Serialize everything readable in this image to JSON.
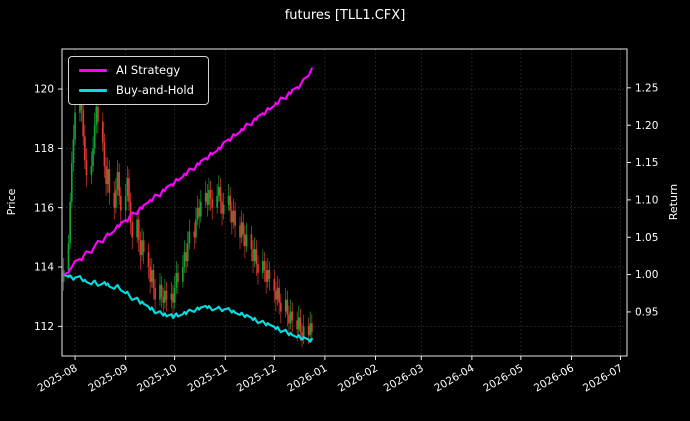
{
  "chart_data": {
    "type": "candlestick",
    "title": "futures [TLL1.CFX]",
    "ylabel_left": "Price",
    "ylabel_right": "Return",
    "grid": true,
    "legend_position": "upper-left",
    "background": "#000000",
    "x_tick_labels": [
      "2025-08",
      "2025-09",
      "2025-10",
      "2025-11",
      "2025-12",
      "2026-01",
      "2026-02",
      "2026-03",
      "2026-04",
      "2026-05",
      "2026-06",
      "2026-07"
    ],
    "x_tick_days": [
      8,
      39,
      69,
      100,
      130,
      161,
      192,
      220,
      251,
      281,
      312,
      342
    ],
    "x_axis_range_days": [
      0,
      346
    ],
    "y_ticks_left": [
      112,
      114,
      116,
      118,
      120
    ],
    "y_ticks_right": [
      0.95,
      1.0,
      1.05,
      1.1,
      1.15,
      1.2,
      1.25
    ],
    "y_ticks_right_labels": [
      "0.95",
      "1.00",
      "1.05",
      "1.10",
      "1.15",
      "1.20",
      "1.25"
    ],
    "price_axis_range": [
      111.0,
      121.35
    ],
    "return_axis_range": [
      0.891,
      1.302
    ],
    "colors": {
      "up": "#12a534",
      "down": "#e23a2e",
      "grid": "#3a3a3a",
      "frame": "#ffffff",
      "ai_strategy": "#ff00ff",
      "buy_and_hold": "#00e0e0"
    },
    "candle_days": [
      1,
      4,
      5,
      6,
      7,
      8,
      11,
      12,
      13,
      14,
      15,
      18,
      19,
      20,
      21,
      22,
      25,
      26,
      27,
      28,
      29,
      32,
      33,
      34,
      35,
      36,
      39,
      40,
      41,
      42,
      43,
      46,
      47,
      48,
      49,
      50,
      53,
      54,
      55,
      56,
      57,
      60,
      61,
      62,
      63,
      64,
      67,
      68,
      69,
      70,
      71,
      74,
      75,
      76,
      77,
      78,
      81,
      82,
      83,
      84,
      85,
      88,
      89,
      90,
      91,
      92,
      95,
      96,
      97,
      98,
      99,
      102,
      103,
      104,
      105,
      106,
      109,
      110,
      111,
      112,
      113,
      116,
      117,
      118,
      119,
      120,
      123,
      124,
      125,
      126,
      127,
      130,
      131,
      132,
      133,
      134,
      137,
      138,
      139,
      140,
      141,
      144,
      145,
      146,
      147,
      148,
      151,
      152,
      153
    ],
    "candles_ohlc": [
      [
        113.5,
        114.3,
        113.2,
        113.9
      ],
      [
        113.9,
        115.1,
        113.7,
        114.8
      ],
      [
        114.8,
        116.5,
        114.6,
        116.2
      ],
      [
        116.2,
        117.9,
        116.0,
        117.5
      ],
      [
        117.5,
        118.8,
        117.2,
        118.3
      ],
      [
        118.3,
        119.7,
        118.1,
        119.2
      ],
      [
        119.2,
        120.4,
        118.9,
        119.8
      ],
      [
        119.8,
        120.2,
        118.9,
        119.3
      ],
      [
        119.3,
        119.6,
        118.1,
        118.4
      ],
      [
        118.4,
        118.8,
        117.3,
        117.6
      ],
      [
        117.6,
        118.0,
        116.7,
        117.1
      ],
      [
        117.1,
        117.9,
        116.8,
        117.4
      ],
      [
        117.4,
        118.4,
        117.2,
        118.0
      ],
      [
        118.0,
        119.2,
        117.8,
        118.8
      ],
      [
        118.8,
        119.9,
        118.5,
        119.4
      ],
      [
        119.4,
        119.7,
        118.5,
        118.9
      ],
      [
        118.9,
        119.2,
        117.9,
        118.2
      ],
      [
        118.2,
        118.5,
        117.0,
        117.4
      ],
      [
        117.4,
        117.7,
        116.4,
        116.8
      ],
      [
        116.8,
        117.7,
        116.5,
        117.3
      ],
      [
        117.3,
        117.6,
        116.1,
        116.5
      ],
      [
        116.5,
        116.9,
        115.6,
        116.0
      ],
      [
        116.0,
        117.0,
        115.8,
        116.6
      ],
      [
        116.6,
        117.6,
        116.4,
        117.2
      ],
      [
        117.2,
        117.5,
        116.1,
        116.4
      ],
      [
        116.4,
        116.7,
        115.5,
        115.9
      ],
      [
        115.9,
        116.8,
        115.6,
        116.4
      ],
      [
        116.4,
        117.4,
        116.2,
        117.0
      ],
      [
        117.0,
        117.3,
        115.9,
        116.2
      ],
      [
        116.2,
        116.5,
        115.1,
        115.5
      ],
      [
        115.5,
        115.8,
        114.6,
        115.0
      ],
      [
        115.0,
        115.9,
        114.8,
        115.6
      ],
      [
        115.6,
        115.9,
        114.5,
        114.9
      ],
      [
        114.9,
        115.2,
        113.9,
        114.4
      ],
      [
        114.4,
        115.3,
        114.2,
        114.9
      ],
      [
        114.9,
        115.2,
        114.1,
        114.5
      ],
      [
        114.5,
        114.8,
        113.6,
        114.0
      ],
      [
        114.0,
        114.3,
        113.1,
        113.5
      ],
      [
        113.5,
        114.3,
        113.3,
        113.9
      ],
      [
        113.9,
        114.1,
        112.9,
        113.3
      ],
      [
        113.3,
        113.6,
        112.5,
        112.9
      ],
      [
        112.9,
        113.8,
        112.7,
        113.4
      ],
      [
        113.4,
        113.7,
        112.6,
        113.0
      ],
      [
        113.0,
        113.3,
        112.4,
        112.8
      ],
      [
        112.8,
        113.6,
        112.6,
        113.2
      ],
      [
        113.2,
        113.5,
        112.5,
        112.9
      ],
      [
        112.9,
        113.5,
        112.6,
        113.1
      ],
      [
        113.1,
        113.4,
        112.3,
        112.8
      ],
      [
        112.8,
        113.7,
        112.6,
        113.3
      ],
      [
        113.3,
        114.2,
        113.1,
        113.8
      ],
      [
        113.8,
        114.1,
        113.1,
        113.5
      ],
      [
        113.5,
        114.4,
        113.3,
        114.0
      ],
      [
        114.0,
        114.9,
        113.8,
        114.5
      ],
      [
        114.5,
        114.8,
        113.8,
        114.2
      ],
      [
        114.2,
        115.2,
        114.0,
        114.8
      ],
      [
        114.8,
        115.6,
        114.6,
        115.2
      ],
      [
        115.2,
        115.5,
        114.6,
        115.0
      ],
      [
        115.0,
        116.0,
        114.8,
        115.6
      ],
      [
        115.6,
        116.4,
        115.4,
        116.0
      ],
      [
        116.0,
        116.3,
        115.3,
        115.7
      ],
      [
        115.7,
        116.6,
        115.5,
        116.2
      ],
      [
        116.2,
        116.9,
        116.0,
        116.5
      ],
      [
        116.5,
        116.8,
        115.7,
        116.1
      ],
      [
        116.1,
        117.0,
        115.9,
        116.6
      ],
      [
        116.6,
        116.9,
        115.9,
        116.3
      ],
      [
        116.3,
        116.6,
        115.6,
        116.0
      ],
      [
        116.0,
        116.8,
        115.8,
        116.4
      ],
      [
        116.4,
        117.1,
        116.2,
        116.7
      ],
      [
        116.7,
        117.0,
        115.8,
        116.2
      ],
      [
        116.2,
        116.5,
        115.4,
        115.8
      ],
      [
        115.8,
        116.5,
        115.6,
        116.1
      ],
      [
        116.1,
        116.8,
        115.9,
        116.4
      ],
      [
        116.4,
        116.7,
        115.5,
        115.9
      ],
      [
        115.9,
        116.2,
        115.1,
        115.5
      ],
      [
        115.5,
        116.3,
        115.3,
        115.9
      ],
      [
        115.9,
        116.2,
        115.0,
        115.4
      ],
      [
        115.4,
        115.7,
        114.6,
        115.0
      ],
      [
        115.0,
        115.9,
        114.8,
        115.5
      ],
      [
        115.5,
        115.8,
        114.7,
        115.1
      ],
      [
        115.1,
        115.4,
        114.3,
        114.7
      ],
      [
        114.7,
        115.5,
        114.5,
        115.1
      ],
      [
        115.1,
        115.4,
        114.2,
        114.6
      ],
      [
        114.6,
        114.9,
        113.8,
        114.2
      ],
      [
        114.2,
        115.0,
        114.0,
        114.6
      ],
      [
        114.6,
        114.9,
        113.7,
        114.1
      ],
      [
        114.1,
        114.4,
        113.4,
        113.8
      ],
      [
        113.8,
        114.6,
        113.6,
        114.2
      ],
      [
        114.2,
        114.5,
        113.5,
        113.9
      ],
      [
        113.9,
        114.2,
        113.1,
        113.5
      ],
      [
        113.5,
        114.3,
        113.3,
        113.9
      ],
      [
        113.9,
        114.2,
        113.2,
        113.6
      ],
      [
        113.6,
        113.9,
        112.8,
        113.2
      ],
      [
        113.2,
        113.5,
        112.5,
        112.9
      ],
      [
        112.9,
        113.7,
        112.7,
        113.3
      ],
      [
        113.3,
        113.6,
        112.4,
        112.8
      ],
      [
        112.8,
        113.1,
        112.1,
        112.5
      ],
      [
        112.5,
        113.3,
        112.3,
        112.9
      ],
      [
        112.9,
        113.2,
        112.0,
        112.4
      ],
      [
        112.4,
        112.7,
        111.7,
        112.1
      ],
      [
        112.1,
        112.9,
        111.9,
        112.5
      ],
      [
        112.5,
        112.8,
        111.8,
        112.2
      ],
      [
        112.2,
        112.5,
        111.5,
        111.9
      ],
      [
        111.9,
        112.7,
        111.7,
        112.3
      ],
      [
        112.3,
        112.6,
        111.5,
        111.8
      ],
      [
        111.8,
        112.1,
        111.3,
        111.6
      ],
      [
        111.6,
        112.4,
        111.4,
        112.0
      ],
      [
        112.0,
        112.3,
        111.4,
        111.7
      ],
      [
        111.7,
        112.5,
        111.5,
        112.1
      ],
      [
        112.1,
        112.4,
        111.5,
        111.8
      ]
    ],
    "series": [
      {
        "name": "AI Strategy",
        "color": "#ff00ff",
        "axis": "return",
        "values": [
          1.0,
          1.003,
          1.007,
          1.01,
          1.014,
          1.018,
          1.021,
          1.019,
          1.024,
          1.028,
          1.031,
          1.029,
          1.034,
          1.038,
          1.042,
          1.045,
          1.043,
          1.048,
          1.052,
          1.055,
          1.053,
          1.058,
          1.062,
          1.066,
          1.064,
          1.069,
          1.073,
          1.071,
          1.076,
          1.08,
          1.083,
          1.081,
          1.086,
          1.09,
          1.088,
          1.093,
          1.097,
          1.1,
          1.098,
          1.103,
          1.107,
          1.105,
          1.11,
          1.114,
          1.112,
          1.117,
          1.121,
          1.119,
          1.124,
          1.128,
          1.126,
          1.131,
          1.135,
          1.133,
          1.138,
          1.142,
          1.14,
          1.145,
          1.149,
          1.147,
          1.152,
          1.156,
          1.154,
          1.159,
          1.163,
          1.161,
          1.166,
          1.17,
          1.168,
          1.173,
          1.177,
          1.181,
          1.179,
          1.184,
          1.188,
          1.186,
          1.191,
          1.195,
          1.193,
          1.198,
          1.202,
          1.2,
          1.205,
          1.209,
          1.207,
          1.212,
          1.216,
          1.214,
          1.219,
          1.223,
          1.221,
          1.226,
          1.23,
          1.228,
          1.233,
          1.237,
          1.235,
          1.24,
          1.244,
          1.242,
          1.247,
          1.251,
          1.249,
          1.254,
          1.258,
          1.262,
          1.266,
          1.271,
          1.276
        ]
      },
      {
        "name": "Buy-and-Hold",
        "color": "#00e0e0",
        "axis": "return",
        "values": [
          1.0,
          0.997,
          0.999,
          0.996,
          0.993,
          0.996,
          0.998,
          0.994,
          0.991,
          0.993,
          0.99,
          0.987,
          0.99,
          0.992,
          0.988,
          0.985,
          0.988,
          0.99,
          0.986,
          0.988,
          0.984,
          0.981,
          0.984,
          0.986,
          0.982,
          0.979,
          0.975,
          0.977,
          0.973,
          0.969,
          0.966,
          0.969,
          0.965,
          0.961,
          0.964,
          0.961,
          0.957,
          0.953,
          0.956,
          0.952,
          0.948,
          0.951,
          0.948,
          0.945,
          0.948,
          0.944,
          0.947,
          0.942,
          0.945,
          0.948,
          0.944,
          0.947,
          0.95,
          0.947,
          0.951,
          0.953,
          0.95,
          0.953,
          0.956,
          0.953,
          0.956,
          0.958,
          0.955,
          0.958,
          0.955,
          0.952,
          0.955,
          0.957,
          0.954,
          0.951,
          0.953,
          0.955,
          0.952,
          0.949,
          0.952,
          0.949,
          0.946,
          0.949,
          0.946,
          0.943,
          0.946,
          0.942,
          0.939,
          0.942,
          0.938,
          0.935,
          0.938,
          0.935,
          0.932,
          0.935,
          0.933,
          0.93,
          0.927,
          0.93,
          0.926,
          0.923,
          0.926,
          0.922,
          0.919,
          0.922,
          0.919,
          0.916,
          0.919,
          0.915,
          0.913,
          0.916,
          0.913,
          0.91,
          0.914
        ]
      }
    ]
  }
}
